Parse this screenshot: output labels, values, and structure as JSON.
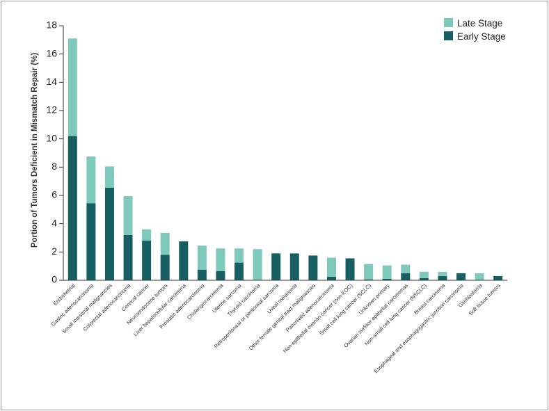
{
  "chart_data": {
    "type": "bar",
    "stacked": true,
    "ylabel": "Portion of Tumors Deficient in Mismatch Repair (%)",
    "ylim": [
      0,
      18
    ],
    "yticks": [
      0,
      2,
      4,
      6,
      8,
      10,
      12,
      14,
      16,
      18
    ],
    "grid": false,
    "legend_position": "top-right",
    "categories": [
      "Endometrial",
      "Gastric adenocarcinoma",
      "Small intestinal malignancies",
      "Colorectal adenocarcinoma",
      "Cervical cancer",
      "Neuroendocrine tumors",
      "Liver hepatocellular carcinoma",
      "Prostatic adenocarcinoma",
      "Cholangiocarcinoma",
      "Uterine sarcoma",
      "Thyroid carcinoma",
      "Retroperitoneal or peritoneal sarcoma",
      "Uveal melanoma",
      "Other female genital tract malignancies",
      "Pancreatic adenocarcinoma",
      "Non-epithelial ovarian cancer (non-EOC)",
      "Small cell lung cancer (SCLC)",
      "Unknown primary",
      "Ovarian surface epithelial carcinomas",
      "Non-small cell lung cancer (NSCLC)",
      "Breast carcinoma",
      "Esophageal and esophagogastric junction carcinoma",
      "Glioblastoma",
      "Soft tissue tumors"
    ],
    "series": [
      {
        "name": "Early Stage",
        "color": "#175f63",
        "values": [
          10.2,
          5.45,
          6.55,
          3.2,
          2.8,
          1.8,
          2.75,
          0.75,
          0.65,
          1.25,
          0.0,
          1.9,
          1.9,
          1.75,
          0.25,
          1.55,
          0.05,
          0.1,
          0.5,
          0.15,
          0.3,
          0.5,
          0.0,
          0.3
        ]
      },
      {
        "name": "Late Stage",
        "color": "#7fc8bc",
        "values": [
          6.9,
          3.3,
          1.5,
          2.75,
          0.8,
          1.55,
          0.0,
          1.7,
          1.6,
          1.0,
          2.2,
          0.0,
          0.0,
          0.0,
          1.35,
          0.0,
          1.1,
          0.95,
          0.6,
          0.45,
          0.3,
          0.0,
          0.5,
          0.0
        ]
      }
    ],
    "legend": [
      "Late Stage",
      "Early Stage"
    ]
  }
}
